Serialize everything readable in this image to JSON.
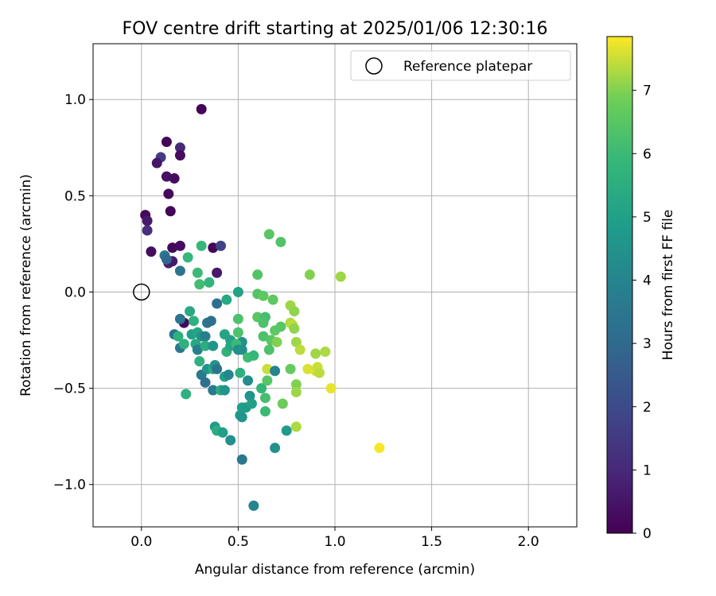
{
  "chart_data": {
    "type": "scatter",
    "title": "FOV centre drift starting at 2025/01/06 12:30:16",
    "xlabel": "Angular distance from reference (arcmin)",
    "ylabel": "Rotation from reference (arcmin)",
    "xlim": [
      -0.25,
      2.25
    ],
    "ylim": [
      -1.22,
      1.29
    ],
    "xticks": [
      0.0,
      0.5,
      1.0,
      1.5,
      2.0
    ],
    "xtick_labels": [
      "0.0",
      "0.5",
      "1.0",
      "1.5",
      "2.0"
    ],
    "yticks": [
      1.0,
      0.5,
      0.0,
      -0.5,
      -1.0
    ],
    "ytick_labels": [
      "1.0",
      "0.5",
      "0.0",
      "−0.5",
      "−1.0"
    ],
    "grid": true,
    "legend": {
      "placement": "upper-right",
      "entries": [
        {
          "label": "Reference platepar",
          "marker": "open-circle"
        }
      ]
    },
    "reference_point": {
      "x": 0.0,
      "y": 0.0
    },
    "colorbar": {
      "label": "Hours from first FF file",
      "colormap": "viridis",
      "range": [
        0,
        7.85
      ],
      "ticks": [
        0,
        1,
        2,
        3,
        4,
        5,
        6,
        7
      ],
      "tick_labels": [
        "0",
        "1",
        "2",
        "3",
        "4",
        "5",
        "6",
        "7"
      ]
    },
    "points": [
      {
        "x": 0.31,
        "y": 0.95,
        "h": 0.1
      },
      {
        "x": 0.13,
        "y": 0.78,
        "h": 0.1
      },
      {
        "x": 0.2,
        "y": 0.75,
        "h": 1.0
      },
      {
        "x": 0.1,
        "y": 0.7,
        "h": 1.6
      },
      {
        "x": 0.08,
        "y": 0.67,
        "h": 0.5
      },
      {
        "x": 0.2,
        "y": 0.71,
        "h": 0.3
      },
      {
        "x": 0.13,
        "y": 0.6,
        "h": 0.4
      },
      {
        "x": 0.17,
        "y": 0.59,
        "h": 0.3
      },
      {
        "x": 0.14,
        "y": 0.51,
        "h": 0.2
      },
      {
        "x": 0.15,
        "y": 0.42,
        "h": 0.1
      },
      {
        "x": 0.02,
        "y": 0.4,
        "h": 0.2
      },
      {
        "x": 0.03,
        "y": 0.37,
        "h": 0.6
      },
      {
        "x": 0.03,
        "y": 0.32,
        "h": 1.2
      },
      {
        "x": 0.05,
        "y": 0.21,
        "h": 0.3
      },
      {
        "x": 0.16,
        "y": 0.23,
        "h": 0.2
      },
      {
        "x": 0.2,
        "y": 0.24,
        "h": 0.3
      },
      {
        "x": 0.37,
        "y": 0.23,
        "h": 0.1
      },
      {
        "x": 0.41,
        "y": 0.24,
        "h": 1.8
      },
      {
        "x": 0.12,
        "y": 0.19,
        "h": 3.5
      },
      {
        "x": 0.14,
        "y": 0.15,
        "h": 0.8
      },
      {
        "x": 0.16,
        "y": 0.16,
        "h": 0.6
      },
      {
        "x": 0.13,
        "y": 0.17,
        "h": 3.0
      },
      {
        "x": 0.2,
        "y": 0.11,
        "h": 3.4
      },
      {
        "x": 0.39,
        "y": 0.1,
        "h": 0.6
      },
      {
        "x": 0.24,
        "y": 0.18,
        "h": 5.9
      },
      {
        "x": 0.31,
        "y": 0.24,
        "h": 5.9
      },
      {
        "x": 0.29,
        "y": 0.1,
        "h": 6.0
      },
      {
        "x": 0.3,
        "y": 0.04,
        "h": 6.1
      },
      {
        "x": 0.35,
        "y": 0.05,
        "h": 5.8
      },
      {
        "x": 0.66,
        "y": 0.3,
        "h": 6.5
      },
      {
        "x": 0.72,
        "y": 0.26,
        "h": 6.4
      },
      {
        "x": 0.6,
        "y": 0.09,
        "h": 6.4
      },
      {
        "x": 0.87,
        "y": 0.09,
        "h": 7.0
      },
      {
        "x": 1.03,
        "y": 0.08,
        "h": 7.2
      },
      {
        "x": 0.22,
        "y": -0.16,
        "h": 0.2
      },
      {
        "x": 0.39,
        "y": -0.06,
        "h": 3.2
      },
      {
        "x": 0.44,
        "y": -0.04,
        "h": 5.3
      },
      {
        "x": 0.5,
        "y": 0.0,
        "h": 5.1
      },
      {
        "x": 0.6,
        "y": -0.01,
        "h": 6.4
      },
      {
        "x": 0.63,
        "y": -0.02,
        "h": 6.6
      },
      {
        "x": 0.68,
        "y": -0.04,
        "h": 6.6
      },
      {
        "x": 0.77,
        "y": -0.07,
        "h": 7.2
      },
      {
        "x": 0.79,
        "y": -0.1,
        "h": 7.1
      },
      {
        "x": 0.6,
        "y": -0.13,
        "h": 6.5
      },
      {
        "x": 0.64,
        "y": -0.13,
        "h": 6.2
      },
      {
        "x": 0.63,
        "y": -0.16,
        "h": 6.3
      },
      {
        "x": 0.5,
        "y": -0.14,
        "h": 6.3
      },
      {
        "x": 0.25,
        "y": -0.1,
        "h": 5.3
      },
      {
        "x": 0.2,
        "y": -0.14,
        "h": 3.4
      },
      {
        "x": 0.27,
        "y": -0.15,
        "h": 5.6
      },
      {
        "x": 0.34,
        "y": -0.16,
        "h": 3.4
      },
      {
        "x": 0.36,
        "y": -0.15,
        "h": 3.2
      },
      {
        "x": 0.69,
        "y": -0.2,
        "h": 6.6
      },
      {
        "x": 0.72,
        "y": -0.18,
        "h": 6.5
      },
      {
        "x": 0.77,
        "y": -0.16,
        "h": 7.3
      },
      {
        "x": 0.78,
        "y": -0.17,
        "h": 7.4
      },
      {
        "x": 0.79,
        "y": -0.19,
        "h": 7.1
      },
      {
        "x": 0.17,
        "y": -0.22,
        "h": 3.4
      },
      {
        "x": 0.19,
        "y": -0.23,
        "h": 5.6
      },
      {
        "x": 0.26,
        "y": -0.22,
        "h": 5.0
      },
      {
        "x": 0.29,
        "y": -0.21,
        "h": 5.2
      },
      {
        "x": 0.31,
        "y": -0.23,
        "h": 4.5
      },
      {
        "x": 0.33,
        "y": -0.23,
        "h": 3.8
      },
      {
        "x": 0.43,
        "y": -0.22,
        "h": 5.2
      },
      {
        "x": 0.46,
        "y": -0.25,
        "h": 5.1
      },
      {
        "x": 0.5,
        "y": -0.21,
        "h": 6.3
      },
      {
        "x": 0.52,
        "y": -0.26,
        "h": 4.4
      },
      {
        "x": 0.63,
        "y": -0.23,
        "h": 6.3
      },
      {
        "x": 0.67,
        "y": -0.25,
        "h": 6.5
      },
      {
        "x": 0.7,
        "y": -0.26,
        "h": 7.0
      },
      {
        "x": 0.8,
        "y": -0.26,
        "h": 7.2
      },
      {
        "x": 0.2,
        "y": -0.29,
        "h": 3.5
      },
      {
        "x": 0.22,
        "y": -0.27,
        "h": 5.6
      },
      {
        "x": 0.28,
        "y": -0.27,
        "h": 5.3
      },
      {
        "x": 0.29,
        "y": -0.3,
        "h": 3.8
      },
      {
        "x": 0.33,
        "y": -0.28,
        "h": 5.5
      },
      {
        "x": 0.37,
        "y": -0.28,
        "h": 4.6
      },
      {
        "x": 0.44,
        "y": -0.31,
        "h": 5.7
      },
      {
        "x": 0.46,
        "y": -0.28,
        "h": 5.2
      },
      {
        "x": 0.49,
        "y": -0.27,
        "h": 6.0
      },
      {
        "x": 0.5,
        "y": -0.3,
        "h": 4.3
      },
      {
        "x": 0.52,
        "y": -0.3,
        "h": 4.4
      },
      {
        "x": 0.55,
        "y": -0.34,
        "h": 6.1
      },
      {
        "x": 0.58,
        "y": -0.33,
        "h": 5.9
      },
      {
        "x": 0.66,
        "y": -0.3,
        "h": 6.3
      },
      {
        "x": 0.82,
        "y": -0.3,
        "h": 7.4
      },
      {
        "x": 0.9,
        "y": -0.32,
        "h": 7.2
      },
      {
        "x": 0.95,
        "y": -0.31,
        "h": 7.3
      },
      {
        "x": 0.3,
        "y": -0.36,
        "h": 5.6
      },
      {
        "x": 0.31,
        "y": -0.43,
        "h": 3.6
      },
      {
        "x": 0.34,
        "y": -0.4,
        "h": 4.6
      },
      {
        "x": 0.37,
        "y": -0.4,
        "h": 5.4
      },
      {
        "x": 0.38,
        "y": -0.38,
        "h": 4.6
      },
      {
        "x": 0.39,
        "y": -0.4,
        "h": 3.4
      },
      {
        "x": 0.43,
        "y": -0.44,
        "h": 5.0
      },
      {
        "x": 0.45,
        "y": -0.43,
        "h": 4.1
      },
      {
        "x": 0.51,
        "y": -0.42,
        "h": 5.6
      },
      {
        "x": 0.55,
        "y": -0.46,
        "h": 4.3
      },
      {
        "x": 0.65,
        "y": -0.4,
        "h": 7.5
      },
      {
        "x": 0.69,
        "y": -0.41,
        "h": 4.0
      },
      {
        "x": 0.77,
        "y": -0.4,
        "h": 6.7
      },
      {
        "x": 0.86,
        "y": -0.4,
        "h": 7.6
      },
      {
        "x": 0.9,
        "y": -0.41,
        "h": 7.6
      },
      {
        "x": 0.91,
        "y": -0.39,
        "h": 7.5
      },
      {
        "x": 0.92,
        "y": -0.42,
        "h": 7.4
      },
      {
        "x": 0.33,
        "y": -0.47,
        "h": 3.3
      },
      {
        "x": 0.37,
        "y": -0.51,
        "h": 3.6
      },
      {
        "x": 0.41,
        "y": -0.51,
        "h": 5.4
      },
      {
        "x": 0.43,
        "y": -0.51,
        "h": 4.6
      },
      {
        "x": 0.62,
        "y": -0.5,
        "h": 5.8
      },
      {
        "x": 0.65,
        "y": -0.46,
        "h": 6.5
      },
      {
        "x": 0.8,
        "y": -0.48,
        "h": 7.0
      },
      {
        "x": 0.8,
        "y": -0.52,
        "h": 7.2
      },
      {
        "x": 0.98,
        "y": -0.5,
        "h": 7.7
      },
      {
        "x": 0.23,
        "y": -0.53,
        "h": 5.6
      },
      {
        "x": 0.56,
        "y": -0.54,
        "h": 4.5
      },
      {
        "x": 0.64,
        "y": -0.55,
        "h": 6.2
      },
      {
        "x": 0.73,
        "y": -0.58,
        "h": 6.8
      },
      {
        "x": 0.52,
        "y": -0.6,
        "h": 5.0
      },
      {
        "x": 0.54,
        "y": -0.6,
        "h": 4.8
      },
      {
        "x": 0.57,
        "y": -0.58,
        "h": 5.0
      },
      {
        "x": 0.51,
        "y": -0.64,
        "h": 4.8
      },
      {
        "x": 0.52,
        "y": -0.65,
        "h": 4.6
      },
      {
        "x": 0.64,
        "y": -0.62,
        "h": 6.0
      },
      {
        "x": 0.38,
        "y": -0.7,
        "h": 4.8
      },
      {
        "x": 0.39,
        "y": -0.72,
        "h": 5.5
      },
      {
        "x": 0.42,
        "y": -0.73,
        "h": 5.0
      },
      {
        "x": 0.46,
        "y": -0.77,
        "h": 4.4
      },
      {
        "x": 0.75,
        "y": -0.72,
        "h": 4.8
      },
      {
        "x": 0.8,
        "y": -0.7,
        "h": 7.3
      },
      {
        "x": 0.69,
        "y": -0.81,
        "h": 4.5
      },
      {
        "x": 0.52,
        "y": -0.87,
        "h": 3.5
      },
      {
        "x": 1.23,
        "y": -0.81,
        "h": 7.8
      },
      {
        "x": 0.58,
        "y": -1.11,
        "h": 4.0
      }
    ]
  }
}
